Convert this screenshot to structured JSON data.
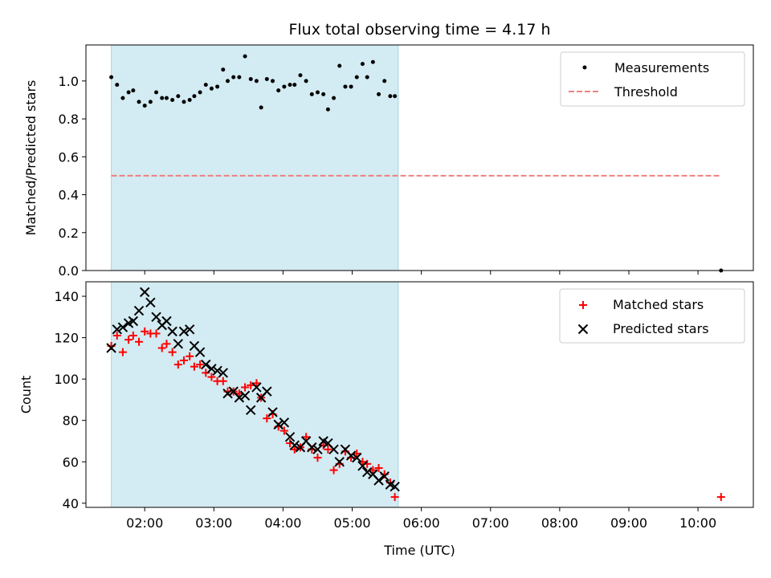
{
  "chart_data": [
    {
      "type": "scatter",
      "title": "Flux total observing time = 4.17 h",
      "xlabel": "",
      "ylabel": "Matched/Predicted stars",
      "xlim": [
        "01:09",
        "10:48"
      ],
      "ylim": [
        0,
        1.19
      ],
      "yticks": [
        0.0,
        0.2,
        0.4,
        0.6,
        0.8,
        1.0
      ],
      "ytick_labels": [
        "0.0",
        "0.2",
        "0.4",
        "0.6",
        "0.8",
        "1.0"
      ],
      "legend": "top-right",
      "grid": false,
      "shaded_region": {
        "x": [
          "01:31",
          "05:40"
        ],
        "color": "#d3ebf2"
      },
      "series": [
        {
          "name": "Measurements",
          "marker": "dot",
          "color": "#000000",
          "x": [
            "01:31",
            "01:36",
            "01:41",
            "01:46",
            "01:50",
            "01:55",
            "02:00",
            "02:05",
            "02:10",
            "02:15",
            "02:19",
            "02:24",
            "02:29",
            "02:34",
            "02:39",
            "02:43",
            "02:48",
            "02:53",
            "02:58",
            "03:03",
            "03:08",
            "03:12",
            "03:17",
            "03:22",
            "03:27",
            "03:32",
            "03:37",
            "03:41",
            "03:46",
            "03:51",
            "03:56",
            "04:01",
            "04:06",
            "04:10",
            "04:15",
            "04:20",
            "04:25",
            "04:30",
            "04:35",
            "04:39",
            "04:44",
            "04:49",
            "04:54",
            "04:59",
            "05:04",
            "05:09",
            "05:13",
            "05:18",
            "05:23",
            "05:28",
            "05:33",
            "05:37",
            "10:20"
          ],
          "y": [
            1.02,
            0.98,
            0.91,
            0.94,
            0.95,
            0.89,
            0.87,
            0.89,
            0.94,
            0.91,
            0.91,
            0.9,
            0.92,
            0.89,
            0.9,
            0.92,
            0.94,
            0.98,
            0.96,
            0.97,
            1.06,
            1.0,
            1.02,
            1.02,
            1.13,
            1.01,
            1.0,
            0.86,
            1.01,
            1.0,
            0.95,
            0.97,
            0.98,
            0.98,
            1.03,
            1.0,
            0.93,
            0.94,
            0.93,
            0.85,
            0.91,
            1.08,
            0.97,
            0.97,
            1.02,
            1.09,
            1.02,
            1.1,
            0.93,
            1.0,
            0.92,
            0.92,
            0.0
          ]
        },
        {
          "name": "Threshold",
          "marker": "dashed-line",
          "color": "#f08080",
          "x": [
            "01:31",
            "10:20"
          ],
          "y": [
            0.5,
            0.5
          ]
        }
      ]
    },
    {
      "type": "scatter",
      "title": "",
      "xlabel": "Time (UTC)",
      "ylabel": "Count",
      "xlim": [
        "01:09",
        "10:48"
      ],
      "xticks": [
        "02:00",
        "03:00",
        "04:00",
        "05:00",
        "06:00",
        "07:00",
        "08:00",
        "09:00",
        "10:00"
      ],
      "ylim": [
        38,
        147
      ],
      "yticks": [
        40,
        60,
        80,
        100,
        120,
        140
      ],
      "ytick_labels": [
        "40",
        "60",
        "80",
        "100",
        "120",
        "140"
      ],
      "legend": "top-right",
      "grid": false,
      "shaded_region": {
        "x": [
          "01:31",
          "05:40"
        ],
        "color": "#d3ebf2"
      },
      "series": [
        {
          "name": "Matched stars",
          "marker": "plus",
          "color": "#ff0000",
          "x": [
            "01:31",
            "01:36",
            "01:41",
            "01:46",
            "01:50",
            "01:55",
            "02:00",
            "02:05",
            "02:10",
            "02:15",
            "02:19",
            "02:24",
            "02:29",
            "02:34",
            "02:39",
            "02:43",
            "02:48",
            "02:53",
            "02:58",
            "03:03",
            "03:08",
            "03:12",
            "03:17",
            "03:22",
            "03:27",
            "03:32",
            "03:37",
            "03:41",
            "03:46",
            "03:51",
            "03:56",
            "04:01",
            "04:06",
            "04:10",
            "04:15",
            "04:20",
            "04:25",
            "04:30",
            "04:35",
            "04:39",
            "04:44",
            "04:49",
            "04:54",
            "04:59",
            "05:04",
            "05:09",
            "05:13",
            "05:18",
            "05:23",
            "05:28",
            "05:33",
            "05:37",
            "10:20"
          ],
          "y": [
            116,
            121,
            113,
            119,
            121,
            118,
            123,
            122,
            122,
            115,
            117,
            113,
            107,
            109,
            111,
            106,
            107,
            103,
            101,
            99,
            99,
            94,
            94,
            93,
            96,
            97,
            98,
            91,
            81,
            83,
            77,
            75,
            69,
            66,
            67,
            72,
            66,
            62,
            68,
            66,
            56,
            59,
            65,
            62,
            64,
            60,
            59,
            56,
            57,
            54,
            50,
            43,
            43
          ]
        },
        {
          "name": "Predicted stars",
          "marker": "x",
          "color": "#000000",
          "x": [
            "01:31",
            "01:36",
            "01:41",
            "01:46",
            "01:50",
            "01:55",
            "02:00",
            "02:05",
            "02:10",
            "02:15",
            "02:19",
            "02:24",
            "02:29",
            "02:34",
            "02:39",
            "02:43",
            "02:48",
            "02:53",
            "02:58",
            "03:03",
            "03:08",
            "03:12",
            "03:17",
            "03:22",
            "03:27",
            "03:32",
            "03:37",
            "03:41",
            "03:46",
            "03:51",
            "03:56",
            "04:01",
            "04:06",
            "04:10",
            "04:15",
            "04:20",
            "04:25",
            "04:30",
            "04:35",
            "04:39",
            "04:44",
            "04:49",
            "04:54",
            "04:59",
            "05:04",
            "05:09",
            "05:13",
            "05:18",
            "05:23",
            "05:28",
            "05:33",
            "05:37"
          ],
          "y": [
            115,
            124,
            125,
            127,
            128,
            133,
            142,
            137,
            130,
            126,
            128,
            123,
            117,
            123,
            124,
            116,
            113,
            107,
            105,
            104,
            103,
            93,
            94,
            91,
            92,
            85,
            96,
            91,
            94,
            84,
            78,
            79,
            72,
            68,
            67,
            70,
            67,
            66,
            70,
            69,
            66,
            60,
            66,
            63,
            62,
            58,
            55,
            54,
            51,
            53,
            49,
            48
          ]
        }
      ]
    }
  ]
}
